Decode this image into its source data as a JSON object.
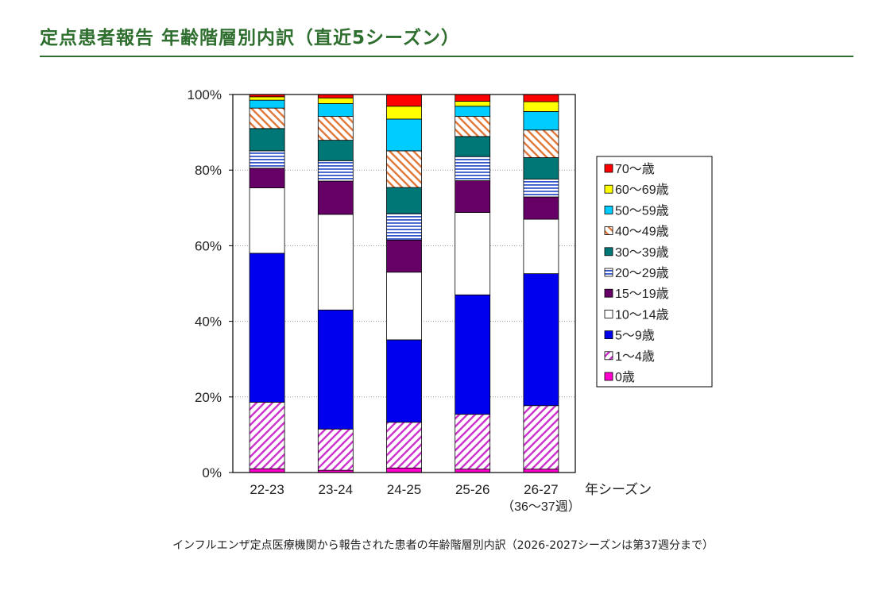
{
  "page": {
    "title": "定点患者報告 年齢階層別内訳（直近5シーズン）",
    "caption": "インフルエンザ定点医療機関から報告された患者の年齢階層別内訳（2026-2027シーズンは第37週分まで）"
  },
  "chart_data": {
    "type": "bar",
    "stacked": true,
    "percent_stacked": true,
    "categories": [
      "22-23",
      "23-24",
      "24-25",
      "25-26",
      "26-27"
    ],
    "category_sublabels": [
      "",
      "",
      "",
      "",
      "（36～37週）"
    ],
    "xlabel": "年シーズン",
    "ylim": [
      0,
      100
    ],
    "yticks": [
      "0%",
      "20%",
      "40%",
      "60%",
      "80%",
      "100%"
    ],
    "grid": true,
    "legend_position": "right",
    "series": [
      {
        "name": "0歳",
        "color": "#ff00cc",
        "pattern": "solid",
        "values": [
          1.0,
          0.6,
          1.2,
          0.9,
          0.9
        ]
      },
      {
        "name": "1～4歳",
        "color": "#cc33cc",
        "pattern": "diagonal",
        "values": [
          17.6,
          10.9,
          12.1,
          14.5,
          16.8
        ]
      },
      {
        "name": "5～9歳",
        "color": "#0000ee",
        "pattern": "solid",
        "values": [
          39.4,
          31.5,
          21.8,
          31.6,
          34.9
        ]
      },
      {
        "name": "10～14歳",
        "color": "#ffffff",
        "pattern": "solid",
        "values": [
          17.3,
          25.3,
          17.9,
          21.8,
          14.4
        ]
      },
      {
        "name": "15～19歳",
        "color": "#660066",
        "pattern": "solid",
        "values": [
          5.2,
          8.8,
          8.5,
          8.4,
          5.9
        ]
      },
      {
        "name": "20～29歳",
        "color": "#3355cc",
        "pattern": "horizontal",
        "values": [
          4.6,
          5.4,
          7.0,
          6.4,
          4.7
        ]
      },
      {
        "name": "30～39歳",
        "color": "#007777",
        "pattern": "solid",
        "values": [
          5.9,
          5.4,
          6.9,
          5.3,
          5.7
        ]
      },
      {
        "name": "40～49歳",
        "color": "#e0783c",
        "pattern": "diagonal-rev",
        "values": [
          5.4,
          6.3,
          9.7,
          5.3,
          7.3
        ]
      },
      {
        "name": "50～59歳",
        "color": "#00ccff",
        "pattern": "solid",
        "values": [
          2.1,
          3.4,
          8.4,
          2.7,
          4.9
        ]
      },
      {
        "name": "60～69歳",
        "color": "#ffff00",
        "pattern": "solid",
        "values": [
          0.9,
          1.5,
          3.4,
          1.3,
          2.6
        ]
      },
      {
        "name": "70～歳",
        "color": "#ff0000",
        "pattern": "solid",
        "values": [
          0.6,
          0.9,
          3.1,
          1.8,
          1.9
        ]
      }
    ]
  }
}
